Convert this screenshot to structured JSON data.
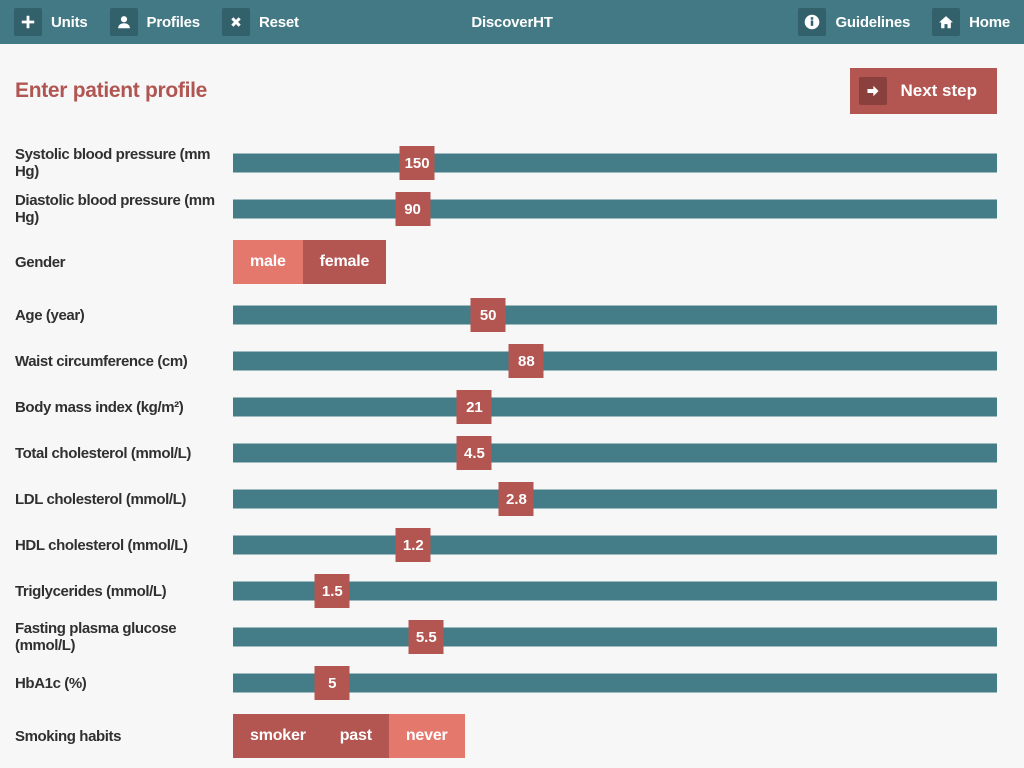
{
  "header": {
    "title": "DiscoverHT",
    "left_items": [
      {
        "label": "Units",
        "icon": "plus-icon"
      },
      {
        "label": "Profiles",
        "icon": "person-icon"
      },
      {
        "label": "Reset",
        "icon": "x-icon"
      }
    ],
    "right_items": [
      {
        "label": "Guidelines",
        "icon": "info-icon"
      },
      {
        "label": "Home",
        "icon": "home-icon"
      }
    ]
  },
  "page": {
    "heading": "Enter patient profile",
    "next_step_label": "Next step"
  },
  "colors": {
    "header_bg": "#427984",
    "header_icon_bg": "#33616b",
    "track_teal": "#447d88",
    "accent_red": "#b35551",
    "accent_red_dark": "#8a403d",
    "accent_salmon": "#e5786d",
    "heading_red": "#b05551",
    "page_bg": "#f7f7f8",
    "label_text": "#303030"
  },
  "rows": [
    {
      "type": "slider",
      "label": "Systolic blood pressure (mm Hg)",
      "value": "150",
      "percent": 24.1
    },
    {
      "type": "slider",
      "label": "Diastolic blood pressure (mm Hg)",
      "value": "90",
      "percent": 23.5
    },
    {
      "type": "toggle",
      "label": "Gender",
      "options": [
        {
          "label": "male",
          "selected": true
        },
        {
          "label": "female",
          "selected": false
        }
      ]
    },
    {
      "type": "slider",
      "label": "Age (year)",
      "value": "50",
      "percent": 33.4
    },
    {
      "type": "slider",
      "label": "Waist circumference (cm)",
      "value": "88",
      "percent": 38.4
    },
    {
      "type": "slider",
      "label": "Body mass index (kg/m²)",
      "value": "21",
      "percent": 31.6
    },
    {
      "type": "slider",
      "label": "Total cholesterol (mmol/L)",
      "value": "4.5",
      "percent": 31.6
    },
    {
      "type": "slider",
      "label": "LDL cholesterol (mmol/L)",
      "value": "2.8",
      "percent": 37.1
    },
    {
      "type": "slider",
      "label": "HDL cholesterol (mmol/L)",
      "value": "1.2",
      "percent": 23.6
    },
    {
      "type": "slider",
      "label": "Triglycerides (mmol/L)",
      "value": "1.5",
      "percent": 13.0
    },
    {
      "type": "slider",
      "label": "Fasting plasma glucose (mmol/L)",
      "value": "5.5",
      "percent": 25.3
    },
    {
      "type": "slider",
      "label": "HbA1c (%)",
      "value": "5",
      "percent": 13.0
    },
    {
      "type": "toggle",
      "label": "Smoking habits",
      "options": [
        {
          "label": "smoker",
          "selected": false
        },
        {
          "label": "past",
          "selected": false
        },
        {
          "label": "never",
          "selected": true
        }
      ]
    }
  ]
}
